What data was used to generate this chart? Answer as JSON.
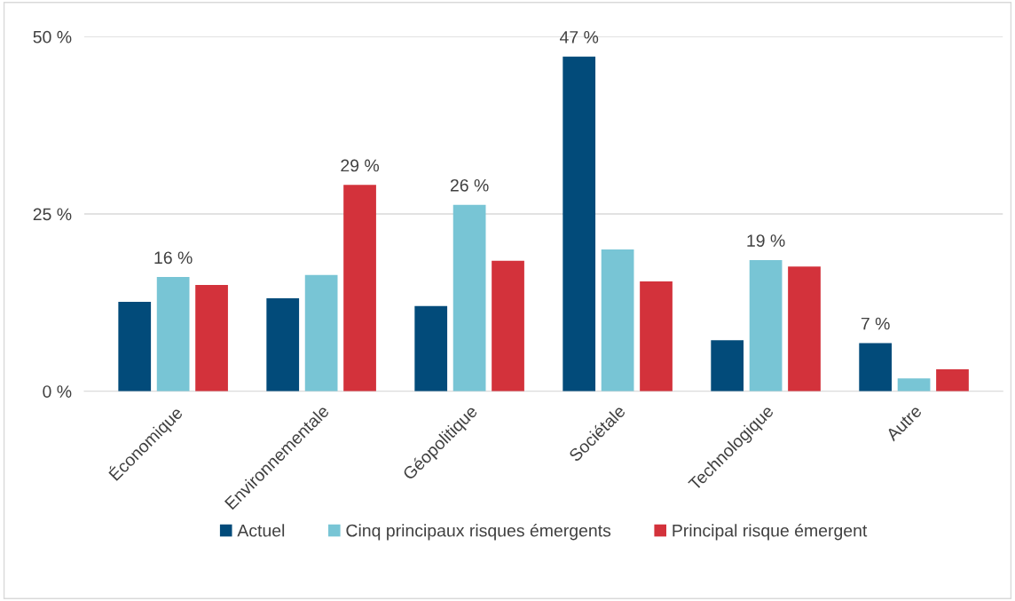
{
  "chart_data": {
    "type": "bar",
    "categories": [
      "Économique",
      "Environnementale",
      "Géopolitique",
      "Sociétale",
      "Technologique",
      "Autre"
    ],
    "series": [
      {
        "name": "Actuel",
        "color": "#024b7a",
        "values": [
          12.6,
          13.1,
          12.0,
          47.2,
          7.2,
          6.8
        ],
        "value_labels": [
          null,
          null,
          null,
          "47 %",
          null,
          "7 %"
        ]
      },
      {
        "name": "Cinq principaux risques émergents",
        "color": "#78c5d5",
        "values": [
          16.1,
          16.4,
          26.3,
          20.0,
          18.5,
          1.8
        ],
        "value_labels": [
          "16 %",
          null,
          "26 %",
          null,
          "19 %",
          null
        ]
      },
      {
        "name": "Principal risque émergent",
        "color": "#d3323b",
        "values": [
          15.0,
          29.1,
          18.4,
          15.5,
          17.6,
          3.1
        ],
        "value_labels": [
          null,
          "29 %",
          null,
          null,
          null,
          null
        ]
      }
    ],
    "ylim": [
      0,
      50
    ],
    "yticks": [
      {
        "value": 0,
        "label": "0 %"
      },
      {
        "value": 25,
        "label": "25 %"
      },
      {
        "value": 50,
        "label": "50 %"
      }
    ],
    "grid": "y",
    "legend": "bottom"
  }
}
